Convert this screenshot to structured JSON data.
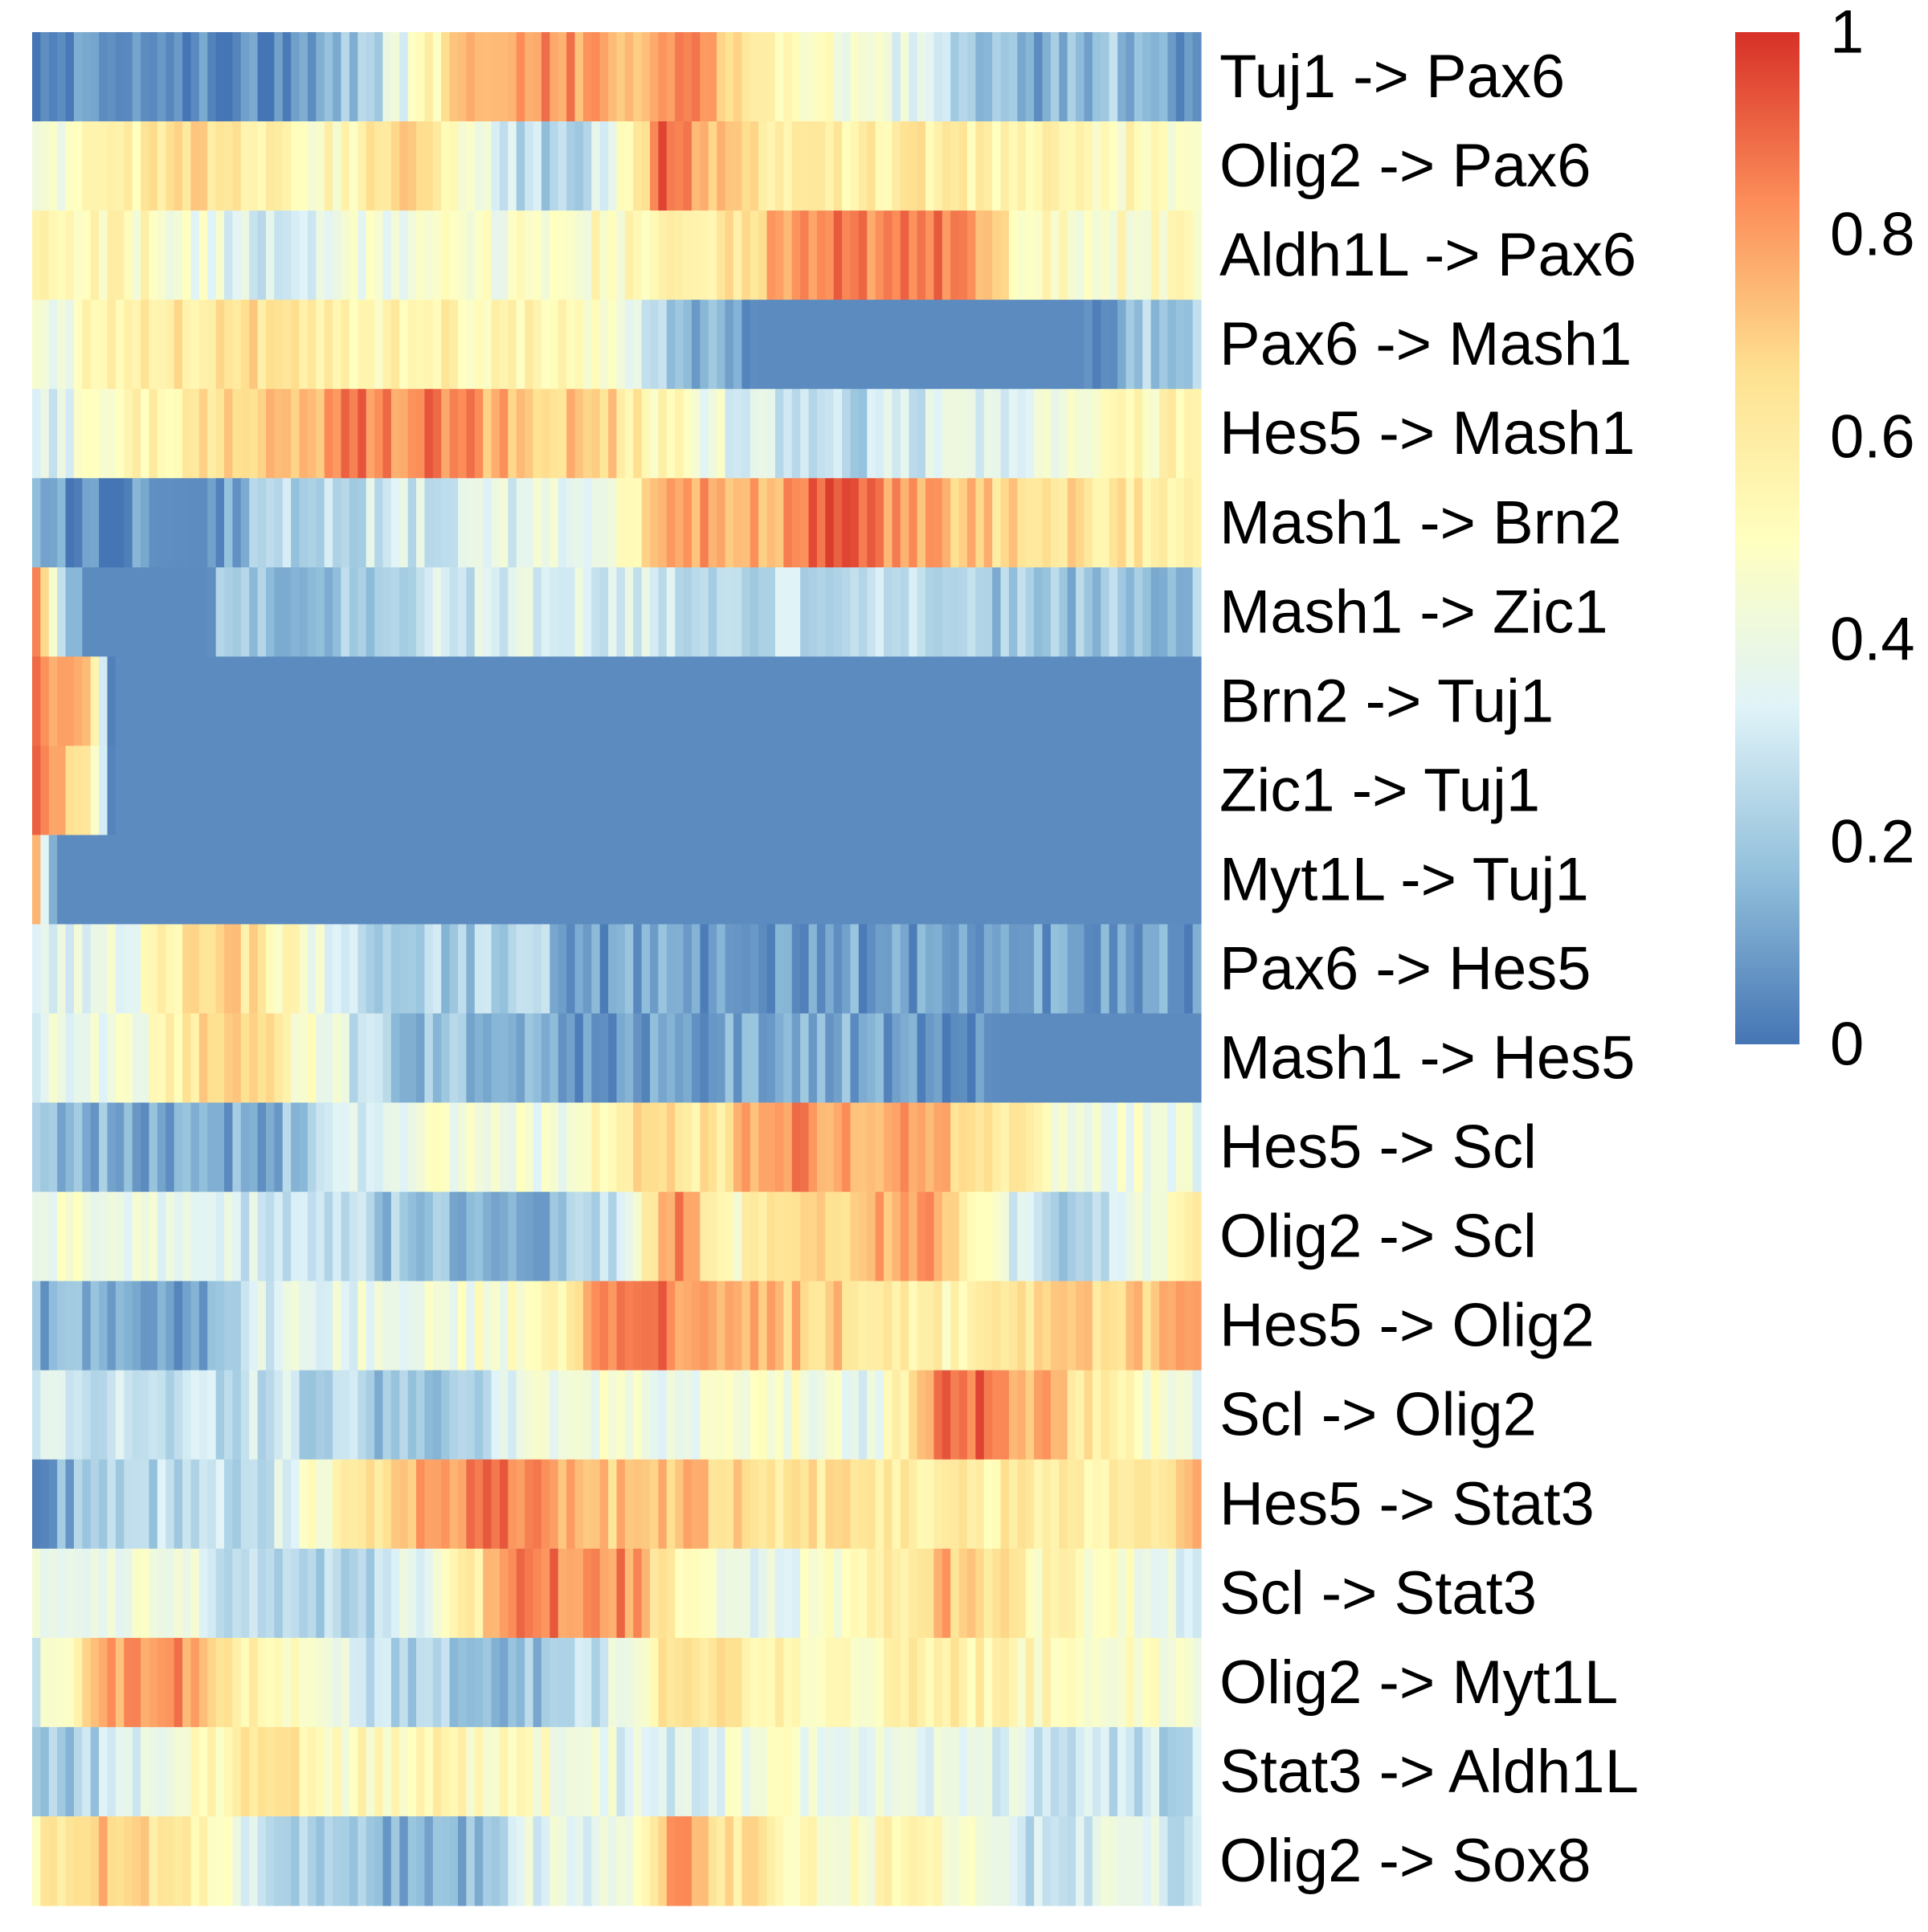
{
  "chart_data": {
    "type": "heatmap",
    "title": "",
    "xlabel": "",
    "ylabel": "",
    "n_columns": 140,
    "rows": [
      "Tuj1 -> Pax6",
      "Olig2 -> Pax6",
      "Aldh1L -> Pax6",
      "Pax6 -> Mash1",
      "Hes5 -> Mash1",
      "Mash1 -> Brn2",
      "Mash1 -> Zic1",
      "Brn2 -> Tuj1",
      "Zic1 -> Tuj1",
      "Myt1L -> Tuj1",
      "Pax6 -> Hes5",
      "Mash1 -> Hes5",
      "Hes5 -> Scl",
      "Olig2 -> Scl",
      "Hes5 -> Olig2",
      "Scl -> Olig2",
      "Hes5 -> Stat3",
      "Scl -> Stat3",
      "Olig2 -> Myt1L",
      "Stat3 -> Aldh1L",
      "Olig2 -> Sox8"
    ],
    "row_profiles": [
      [
        [
          0,
          0.06
        ],
        [
          0.2,
          0.07
        ],
        [
          0.28,
          0.2
        ],
        [
          0.33,
          0.45
        ],
        [
          0.38,
          0.8
        ],
        [
          0.45,
          0.85
        ],
        [
          0.52,
          0.7
        ],
        [
          0.56,
          0.9
        ],
        [
          0.62,
          0.6
        ],
        [
          0.7,
          0.45
        ],
        [
          0.78,
          0.3
        ],
        [
          0.85,
          0.1
        ],
        [
          0.92,
          0.2
        ],
        [
          1,
          0.05
        ]
      ],
      [
        [
          0,
          0.35
        ],
        [
          0.05,
          0.55
        ],
        [
          0.15,
          0.65
        ],
        [
          0.25,
          0.5
        ],
        [
          0.32,
          0.7
        ],
        [
          0.4,
          0.3
        ],
        [
          0.45,
          0.2
        ],
        [
          0.5,
          0.4
        ],
        [
          0.54,
          0.95
        ],
        [
          0.58,
          0.7
        ],
        [
          0.65,
          0.55
        ],
        [
          0.75,
          0.6
        ],
        [
          0.85,
          0.55
        ],
        [
          1,
          0.5
        ]
      ],
      [
        [
          0,
          0.55
        ],
        [
          0.1,
          0.5
        ],
        [
          0.2,
          0.3
        ],
        [
          0.3,
          0.42
        ],
        [
          0.4,
          0.45
        ],
        [
          0.5,
          0.5
        ],
        [
          0.58,
          0.55
        ],
        [
          0.65,
          0.85
        ],
        [
          0.72,
          0.85
        ],
        [
          0.8,
          0.85
        ],
        [
          0.85,
          0.5
        ],
        [
          1,
          0.5
        ]
      ],
      [
        [
          0,
          0.4
        ],
        [
          0.1,
          0.6
        ],
        [
          0.2,
          0.65
        ],
        [
          0.3,
          0.55
        ],
        [
          0.4,
          0.55
        ],
        [
          0.5,
          0.5
        ],
        [
          0.55,
          0.2
        ],
        [
          0.62,
          0.05
        ],
        [
          0.9,
          0.05
        ],
        [
          0.95,
          0.2
        ],
        [
          1,
          0.2
        ]
      ],
      [
        [
          0,
          0.3
        ],
        [
          0.1,
          0.55
        ],
        [
          0.2,
          0.7
        ],
        [
          0.28,
          0.85
        ],
        [
          0.36,
          0.85
        ],
        [
          0.4,
          0.75
        ],
        [
          0.48,
          0.7
        ],
        [
          0.55,
          0.5
        ],
        [
          0.62,
          0.3
        ],
        [
          0.7,
          0.25
        ],
        [
          0.78,
          0.35
        ],
        [
          0.88,
          0.4
        ],
        [
          1,
          0.6
        ]
      ],
      [
        [
          0,
          0.08
        ],
        [
          0.15,
          0.05
        ],
        [
          0.2,
          0.25
        ],
        [
          0.3,
          0.3
        ],
        [
          0.4,
          0.35
        ],
        [
          0.5,
          0.45
        ],
        [
          0.55,
          0.8
        ],
        [
          0.62,
          0.75
        ],
        [
          0.68,
          0.9
        ],
        [
          0.75,
          0.8
        ],
        [
          0.85,
          0.65
        ],
        [
          1,
          0.6
        ]
      ],
      [
        [
          0,
          0.85
        ],
        [
          0.04,
          0.05
        ],
        [
          0.15,
          0.05
        ],
        [
          0.16,
          0.2
        ],
        [
          0.3,
          0.2
        ],
        [
          0.35,
          0.3
        ],
        [
          0.45,
          0.35
        ],
        [
          0.55,
          0.3
        ],
        [
          0.7,
          0.25
        ],
        [
          0.85,
          0.2
        ],
        [
          1,
          0.18
        ]
      ],
      [
        [
          0,
          0.85
        ],
        [
          0.05,
          0.65
        ],
        [
          0.07,
          0.05
        ],
        [
          1,
          0.05
        ]
      ],
      [
        [
          0,
          0.85
        ],
        [
          0.05,
          0.6
        ],
        [
          0.07,
          0.05
        ],
        [
          1,
          0.05
        ]
      ],
      [
        [
          0,
          0.85
        ],
        [
          0.02,
          0.05
        ],
        [
          1,
          0.05
        ]
      ],
      [
        [
          0,
          0.3
        ],
        [
          0.08,
          0.4
        ],
        [
          0.16,
          0.75
        ],
        [
          0.22,
          0.5
        ],
        [
          0.3,
          0.25
        ],
        [
          0.44,
          0.2
        ],
        [
          0.46,
          0.1
        ],
        [
          1,
          0.1
        ]
      ],
      [
        [
          0,
          0.35
        ],
        [
          0.1,
          0.45
        ],
        [
          0.17,
          0.75
        ],
        [
          0.25,
          0.4
        ],
        [
          0.3,
          0.2
        ],
        [
          0.45,
          0.15
        ],
        [
          0.48,
          0.05
        ],
        [
          0.55,
          0.12
        ],
        [
          0.7,
          0.12
        ],
        [
          0.83,
          0.05
        ],
        [
          1,
          0.05
        ]
      ],
      [
        [
          0,
          0.15
        ],
        [
          0.2,
          0.12
        ],
        [
          0.25,
          0.3
        ],
        [
          0.35,
          0.45
        ],
        [
          0.45,
          0.4
        ],
        [
          0.52,
          0.7
        ],
        [
          0.58,
          0.6
        ],
        [
          0.64,
          0.85
        ],
        [
          0.72,
          0.8
        ],
        [
          0.8,
          0.7
        ],
        [
          0.88,
          0.45
        ],
        [
          1,
          0.4
        ]
      ],
      [
        [
          0,
          0.45
        ],
        [
          0.15,
          0.35
        ],
        [
          0.3,
          0.2
        ],
        [
          0.45,
          0.15
        ],
        [
          0.5,
          0.3
        ],
        [
          0.55,
          0.85
        ],
        [
          0.6,
          0.5
        ],
        [
          0.68,
          0.7
        ],
        [
          0.78,
          0.8
        ],
        [
          0.82,
          0.4
        ],
        [
          0.9,
          0.2
        ],
        [
          1,
          0.55
        ]
      ],
      [
        [
          0,
          0.15
        ],
        [
          0.15,
          0.12
        ],
        [
          0.2,
          0.35
        ],
        [
          0.3,
          0.4
        ],
        [
          0.4,
          0.45
        ],
        [
          0.46,
          0.6
        ],
        [
          0.5,
          0.9
        ],
        [
          0.58,
          0.8
        ],
        [
          0.68,
          0.7
        ],
        [
          0.78,
          0.55
        ],
        [
          0.88,
          0.65
        ],
        [
          1,
          0.75
        ]
      ],
      [
        [
          0,
          0.35
        ],
        [
          0.1,
          0.25
        ],
        [
          0.2,
          0.3
        ],
        [
          0.3,
          0.2
        ],
        [
          0.38,
          0.25
        ],
        [
          0.45,
          0.45
        ],
        [
          0.55,
          0.4
        ],
        [
          0.65,
          0.45
        ],
        [
          0.72,
          0.35
        ],
        [
          0.78,
          0.85
        ],
        [
          0.82,
          0.9
        ],
        [
          0.88,
          0.7
        ],
        [
          1,
          0.3
        ]
      ],
      [
        [
          0,
          0.1
        ],
        [
          0.1,
          0.25
        ],
        [
          0.2,
          0.3
        ],
        [
          0.25,
          0.5
        ],
        [
          0.33,
          0.75
        ],
        [
          0.4,
          0.9
        ],
        [
          0.48,
          0.7
        ],
        [
          0.55,
          0.75
        ],
        [
          0.62,
          0.65
        ],
        [
          0.7,
          0.6
        ],
        [
          0.8,
          0.6
        ],
        [
          0.9,
          0.55
        ],
        [
          1,
          0.7
        ]
      ],
      [
        [
          0,
          0.35
        ],
        [
          0.1,
          0.45
        ],
        [
          0.2,
          0.25
        ],
        [
          0.28,
          0.2
        ],
        [
          0.36,
          0.5
        ],
        [
          0.42,
          0.85
        ],
        [
          0.5,
          0.85
        ],
        [
          0.56,
          0.55
        ],
        [
          0.62,
          0.35
        ],
        [
          0.7,
          0.5
        ],
        [
          0.78,
          0.75
        ],
        [
          0.85,
          0.55
        ],
        [
          1,
          0.35
        ]
      ],
      [
        [
          0,
          0.3
        ],
        [
          0.06,
          0.75
        ],
        [
          0.12,
          0.85
        ],
        [
          0.18,
          0.6
        ],
        [
          0.25,
          0.5
        ],
        [
          0.3,
          0.25
        ],
        [
          0.4,
          0.15
        ],
        [
          0.45,
          0.2
        ],
        [
          0.5,
          0.35
        ],
        [
          0.55,
          0.7
        ],
        [
          0.62,
          0.55
        ],
        [
          0.7,
          0.5
        ],
        [
          0.78,
          0.6
        ],
        [
          0.88,
          0.5
        ],
        [
          1,
          0.45
        ]
      ],
      [
        [
          0,
          0.15
        ],
        [
          0.08,
          0.3
        ],
        [
          0.16,
          0.55
        ],
        [
          0.2,
          0.7
        ],
        [
          0.26,
          0.5
        ],
        [
          0.35,
          0.55
        ],
        [
          0.45,
          0.45
        ],
        [
          0.55,
          0.3
        ],
        [
          0.62,
          0.45
        ],
        [
          0.7,
          0.4
        ],
        [
          0.8,
          0.35
        ],
        [
          0.9,
          0.3
        ],
        [
          1,
          0.25
        ]
      ],
      [
        [
          0,
          0.55
        ],
        [
          0.06,
          0.75
        ],
        [
          0.12,
          0.6
        ],
        [
          0.2,
          0.3
        ],
        [
          0.3,
          0.15
        ],
        [
          0.36,
          0.1
        ],
        [
          0.42,
          0.35
        ],
        [
          0.5,
          0.4
        ],
        [
          0.55,
          0.8
        ],
        [
          0.6,
          0.65
        ],
        [
          0.68,
          0.45
        ],
        [
          0.76,
          0.55
        ],
        [
          0.85,
          0.25
        ],
        [
          0.92,
          0.35
        ],
        [
          1,
          0.3
        ]
      ]
    ],
    "colorbar": {
      "range": [
        0,
        1
      ],
      "ticks": [
        "0",
        "0.2",
        "0.4",
        "0.6",
        "0.8",
        "1"
      ],
      "colors": [
        "#4575b4",
        "#91bfdb",
        "#e0f3f8",
        "#ffffbf",
        "#fee090",
        "#fc8d59",
        "#d73027"
      ]
    }
  }
}
